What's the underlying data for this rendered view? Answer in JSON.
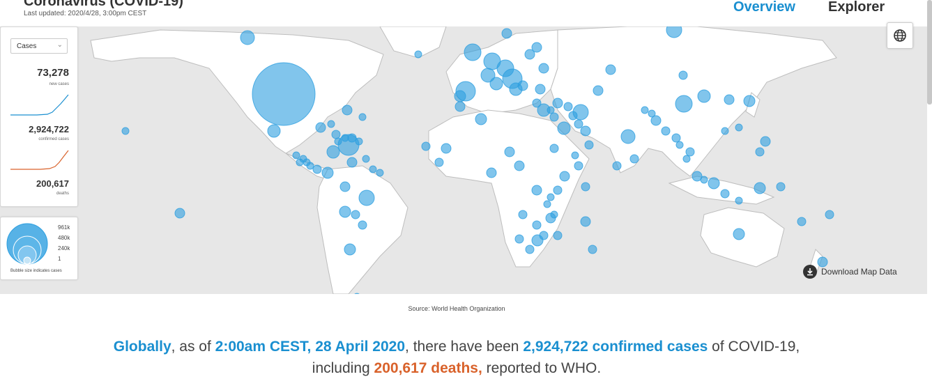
{
  "header": {
    "title": "Coronavirus (COVID-19)",
    "last_updated": "Last updated: 2020/4/28, 3:00pm CEST"
  },
  "nav": {
    "overview": "Overview",
    "explorer": "Explorer"
  },
  "stats": {
    "dropdown_value": "Cases",
    "new_cases_value": "73,278",
    "new_cases_label": "new cases",
    "confirmed_value": "2,924,722",
    "confirmed_label": "confirmed cases",
    "deaths_value": "200,617",
    "deaths_label": "deaths"
  },
  "legend": {
    "values": [
      "961k",
      "480k",
      "240k",
      "1"
    ],
    "caption": "Bubble size indicates cases"
  },
  "map": {
    "download_label": "Download Map Data",
    "bubble_color": "#2d9fe0",
    "land_color": "#ffffff",
    "sea_color": "#e7e7e7"
  },
  "source": "Source: World Health Organization",
  "summary": {
    "p1": "Globally",
    "p2": ", as of ",
    "p3": "2:00am CEST, 28 April 2020",
    "p4": ", there have been ",
    "p5": "2,924,722 confirmed cases",
    "p6": " of COVID-19, including ",
    "p7": "200,617 deaths,",
    "p8": " reported to WHO."
  },
  "colors": {
    "accent": "#1a8fd0",
    "deaths": "#d9622b",
    "new_cases_line": "#1a8fd0"
  }
}
